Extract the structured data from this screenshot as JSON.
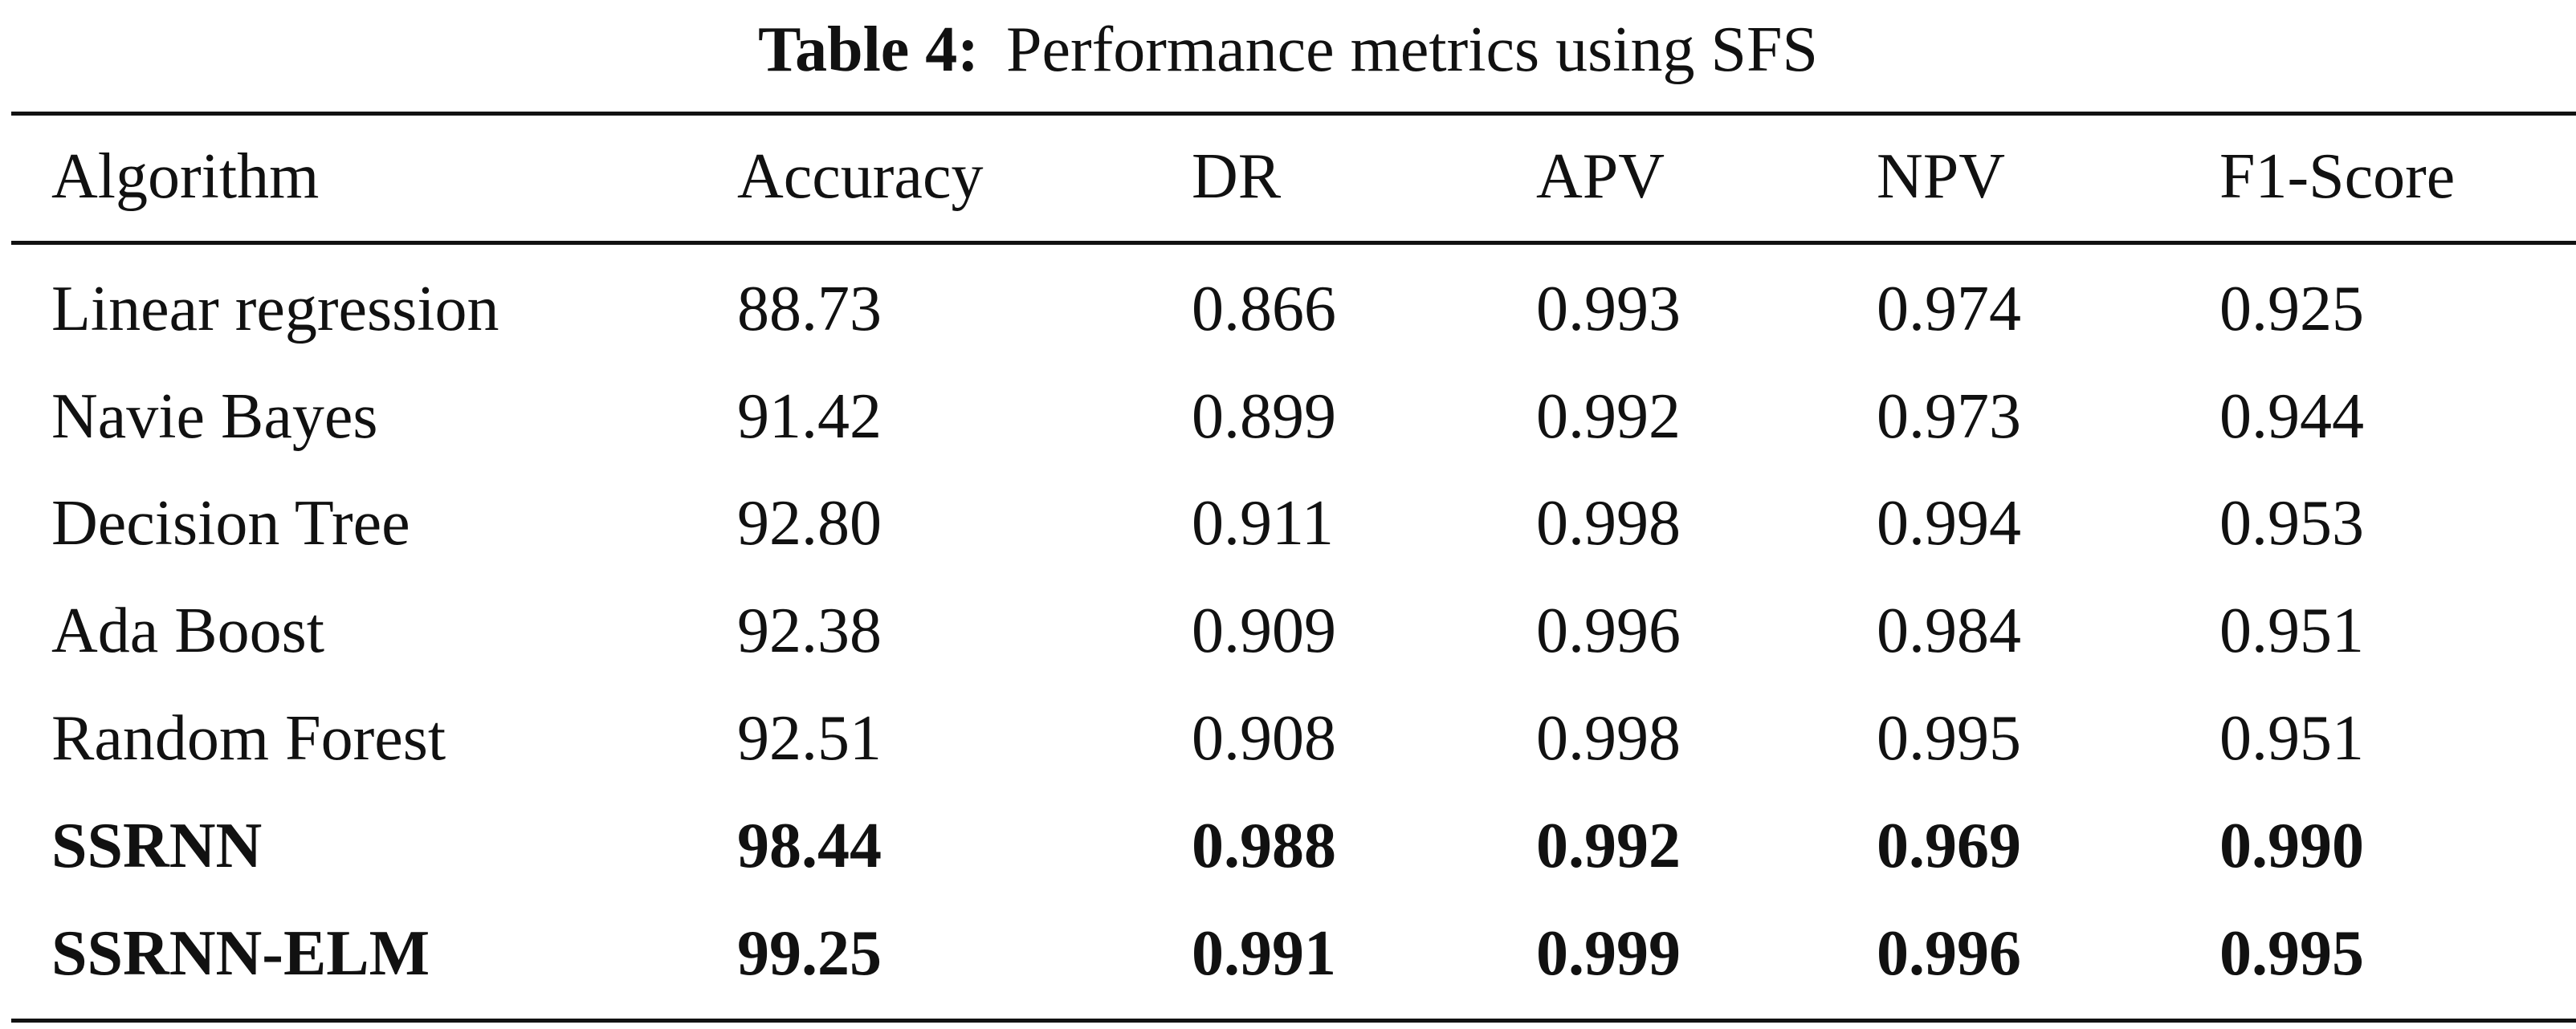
{
  "caption": {
    "label": "Table 4:",
    "title": "Performance metrics using SFS"
  },
  "table": {
    "headers": [
      "Algorithm",
      "Accuracy",
      "DR",
      "APV",
      "NPV",
      "F1-Score"
    ],
    "rows": [
      {
        "cells": [
          "Linear regression",
          "88.73",
          "0.866",
          "0.993",
          "0.974",
          "0.925"
        ],
        "bold": false
      },
      {
        "cells": [
          "Navie Bayes",
          "91.42",
          "0.899",
          "0.992",
          "0.973",
          "0.944"
        ],
        "bold": false
      },
      {
        "cells": [
          "Decision Tree",
          "92.80",
          "0.911",
          "0.998",
          "0.994",
          "0.953"
        ],
        "bold": false
      },
      {
        "cells": [
          "Ada Boost",
          "92.38",
          "0.909",
          "0.996",
          "0.984",
          "0.951"
        ],
        "bold": false
      },
      {
        "cells": [
          "Random Forest",
          "92.51",
          "0.908",
          "0.998",
          "0.995",
          "0.951"
        ],
        "bold": false
      },
      {
        "cells": [
          "SSRNN",
          "98.44",
          "0.988",
          "0.992",
          "0.969",
          "0.990"
        ],
        "bold": true
      },
      {
        "cells": [
          "SSRNN-ELM",
          "99.25",
          "0.991",
          "0.999",
          "0.996",
          "0.995"
        ],
        "bold": true
      }
    ]
  }
}
